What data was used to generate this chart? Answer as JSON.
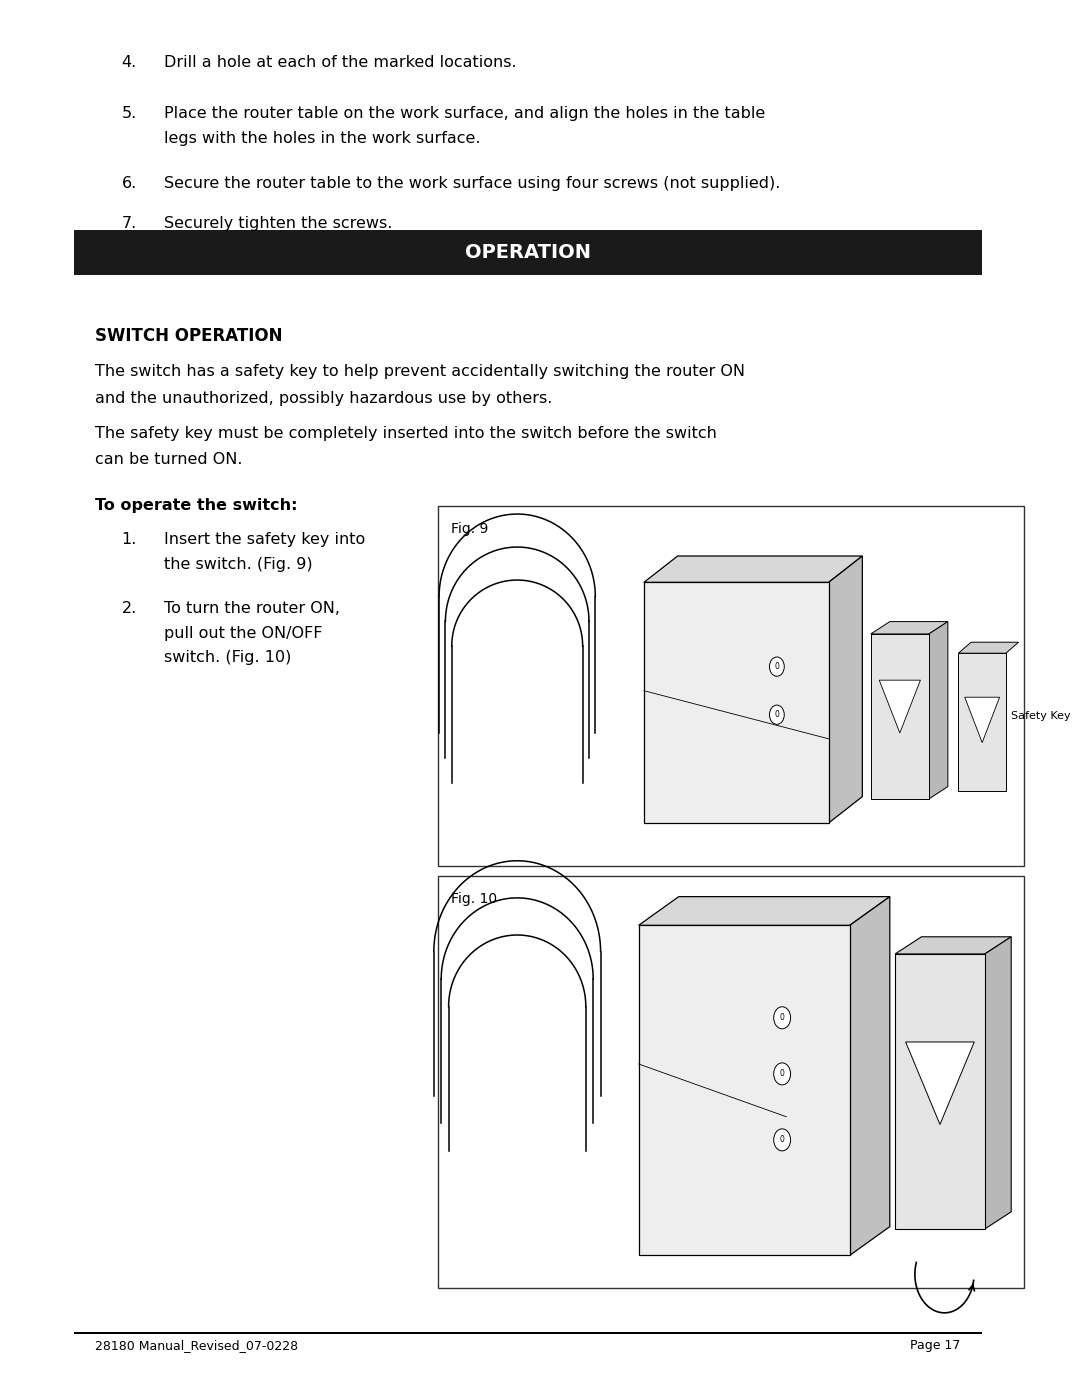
{
  "bg_color": "#ffffff",
  "text_color": "#000000",
  "header_bg": "#1a1a1a",
  "header_text": "#ffffff",
  "item4": "Drill a hole at each of the marked locations.",
  "item5a": "Place the router table on the work surface, and align the holes in the table",
  "item5b": "legs with the holes in the work surface.",
  "item6": "Secure the router table to the work surface using four screws (not supplied).",
  "item7": "Securely tighten the screws.",
  "header": "OPERATION",
  "section_title": "SWITCH OPERATION",
  "para1a": "The switch has a safety key to help prevent accidentally switching the router ON",
  "para1b": "and the unauthorized, possibly hazardous use by others.",
  "para2a": "The safety key must be completely inserted into the switch before the switch",
  "para2b": "can be turned ON.",
  "subhead": "To operate the switch:",
  "step1a": "Insert the safety key into",
  "step1b": "the switch. (Fig. 9)",
  "step2a": "To turn the router ON,",
  "step2b": "pull out the ON/OFF",
  "step2c": "switch. (Fig. 10)",
  "fig9_label": "Fig. 9",
  "fig10_label": "Fig. 10",
  "safety_key_label": "Safety Key",
  "footer_left": "28180 Manual_Revised_07-0228",
  "footer_right": "Page 17",
  "fontsize_body": 11.5,
  "fontsize_header": 14,
  "fontsize_section": 12,
  "fontsize_footer": 9,
  "fontsize_fig": 10
}
